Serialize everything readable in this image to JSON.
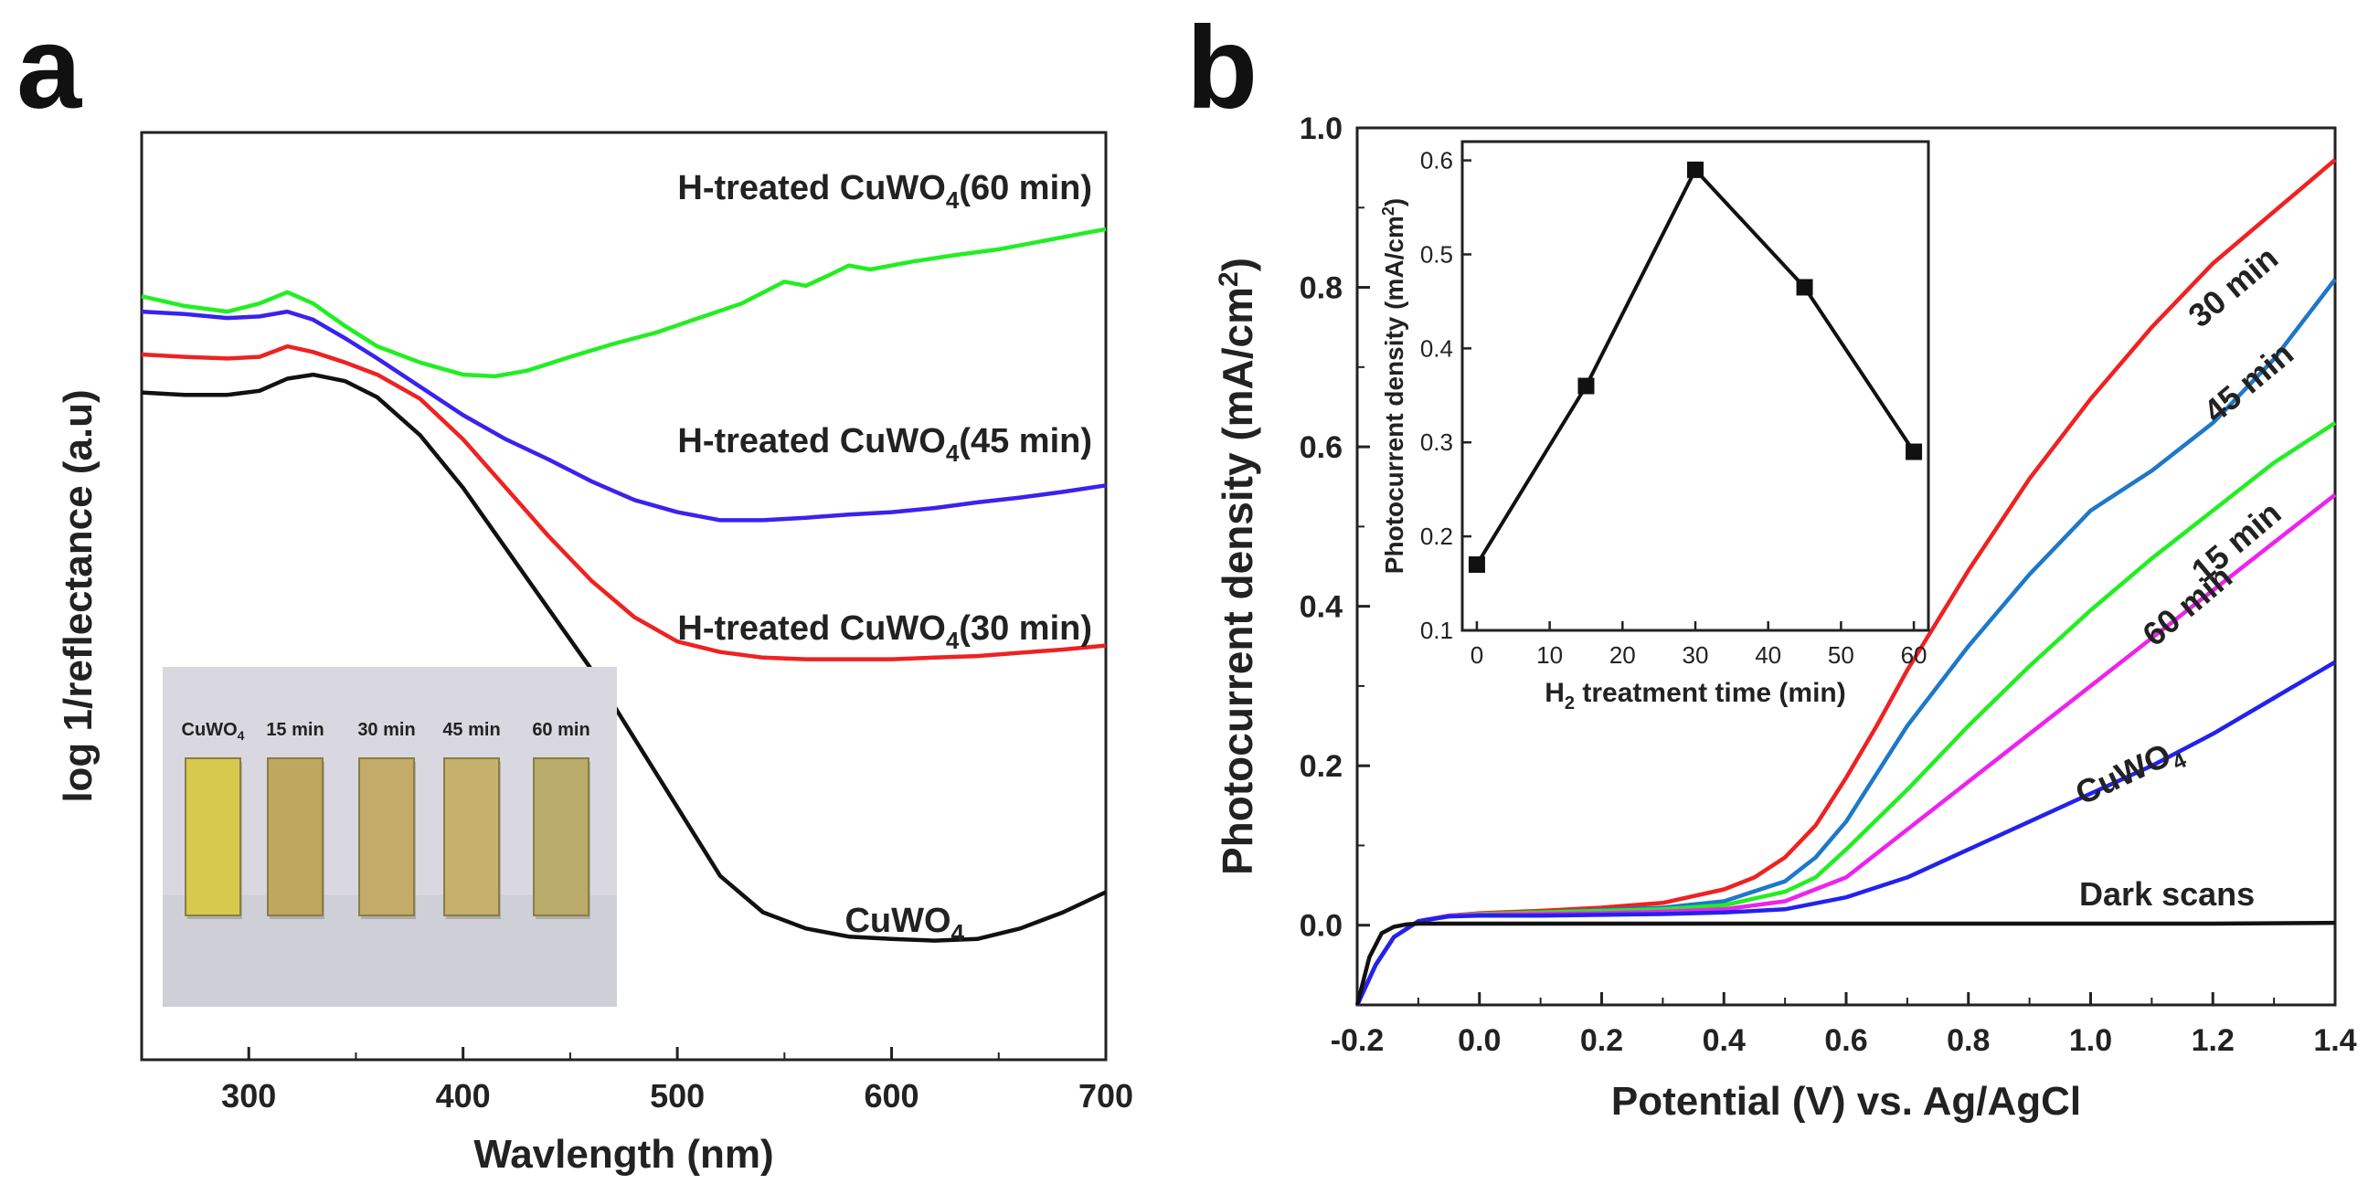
{
  "chart_data": [
    {
      "panel_label": "a",
      "type": "line",
      "xlabel": "Wavlength (nm)",
      "ylabel": "log 1/reflectance (a.u)",
      "xlim": [
        250,
        700
      ],
      "ylim": [
        0,
        1
      ],
      "xticks": [
        300,
        400,
        500,
        600,
        700
      ],
      "series": [
        {
          "name": "H-treated CuWO4(60 min)",
          "label_main": "H-treated CuWO",
          "label_sub": "4",
          "label_tail": "(60 min)",
          "color": "#22ee22",
          "x": [
            250,
            270,
            290,
            305,
            318,
            330,
            345,
            360,
            380,
            400,
            415,
            430,
            450,
            470,
            490,
            510,
            530,
            550,
            560,
            570,
            580,
            590,
            610,
            630,
            650,
            670,
            690,
            700
          ],
          "y": [
            0.837,
            0.825,
            0.818,
            0.828,
            0.842,
            0.828,
            0.8,
            0.775,
            0.755,
            0.74,
            0.738,
            0.745,
            0.762,
            0.778,
            0.792,
            0.81,
            0.828,
            0.855,
            0.85,
            0.862,
            0.875,
            0.87,
            0.88,
            0.888,
            0.895,
            0.905,
            0.915,
            0.92
          ]
        },
        {
          "name": "H-treated CuWO4(45 min)",
          "label_main": "H-treated CuWO",
          "label_sub": "4",
          "label_tail": "(45 min)",
          "color": "#3a22ee",
          "x": [
            250,
            270,
            290,
            305,
            318,
            330,
            345,
            360,
            380,
            400,
            420,
            440,
            460,
            480,
            500,
            520,
            540,
            560,
            580,
            600,
            620,
            640,
            660,
            680,
            700
          ],
          "y": [
            0.818,
            0.815,
            0.81,
            0.812,
            0.818,
            0.808,
            0.785,
            0.76,
            0.725,
            0.69,
            0.66,
            0.635,
            0.608,
            0.585,
            0.57,
            0.56,
            0.56,
            0.563,
            0.567,
            0.57,
            0.575,
            0.582,
            0.588,
            0.595,
            0.603
          ]
        },
        {
          "name": "H-treated CuWO4(30 min)",
          "label_main": "H-treated CuWO",
          "label_sub": "4",
          "label_tail": "(30 min)",
          "color": "#ee2222",
          "x": [
            250,
            270,
            290,
            305,
            318,
            330,
            345,
            360,
            380,
            400,
            420,
            440,
            460,
            480,
            500,
            520,
            540,
            560,
            580,
            600,
            620,
            640,
            660,
            680,
            700
          ],
          "y": [
            0.765,
            0.762,
            0.76,
            0.762,
            0.775,
            0.768,
            0.755,
            0.74,
            0.71,
            0.66,
            0.6,
            0.54,
            0.485,
            0.44,
            0.41,
            0.397,
            0.39,
            0.388,
            0.388,
            0.388,
            0.39,
            0.392,
            0.396,
            0.4,
            0.405
          ]
        },
        {
          "name": "CuWO4",
          "label_main": "CuWO",
          "label_sub": "4",
          "label_tail": "",
          "color": "#111111",
          "x": [
            250,
            270,
            290,
            305,
            318,
            330,
            345,
            360,
            380,
            400,
            420,
            440,
            460,
            480,
            500,
            520,
            540,
            560,
            580,
            600,
            620,
            640,
            660,
            680,
            700
          ],
          "y": [
            0.718,
            0.715,
            0.715,
            0.72,
            0.735,
            0.74,
            0.732,
            0.712,
            0.665,
            0.6,
            0.525,
            0.45,
            0.375,
            0.29,
            0.205,
            0.12,
            0.075,
            0.055,
            0.045,
            0.042,
            0.04,
            0.042,
            0.055,
            0.075,
            0.1
          ]
        }
      ],
      "inset_photo": {
        "labels": [
          {
            "main": "CuWO",
            "sub": "4"
          },
          {
            "main": "15 min",
            "sub": ""
          },
          {
            "main": "30 min",
            "sub": ""
          },
          {
            "main": "45 min",
            "sub": ""
          },
          {
            "main": "60 min",
            "sub": ""
          }
        ],
        "fill_colors": [
          "#d6c94d",
          "#bfa75e",
          "#c4ab6a",
          "#c5b06c",
          "#b9ab69"
        ]
      }
    },
    {
      "panel_label": "b",
      "type": "line",
      "xlabel": "Potential (V) vs. Ag/AgCl",
      "ylabel": "Photocurrent density (mA/cm",
      "ylabel_sup": "2",
      "ylabel_tail": ")",
      "xlim": [
        -0.2,
        1.4
      ],
      "ylim": [
        -0.1,
        1.0
      ],
      "xticks": [
        -0.2,
        0.0,
        0.2,
        0.4,
        0.6,
        0.8,
        1.0,
        1.2,
        1.4
      ],
      "yticks": [
        0.0,
        0.2,
        0.4,
        0.6,
        0.8,
        1.0
      ],
      "series": [
        {
          "name": "30 min",
          "label_main": "30 min",
          "label_sub": "",
          "color": "#ee2222",
          "x": [
            -0.2,
            -0.17,
            -0.14,
            -0.1,
            -0.05,
            0.0,
            0.1,
            0.2,
            0.3,
            0.4,
            0.45,
            0.5,
            0.55,
            0.6,
            0.65,
            0.7,
            0.8,
            0.9,
            1.0,
            1.1,
            1.2,
            1.3,
            1.4
          ],
          "y": [
            -0.1,
            -0.05,
            -0.015,
            0.005,
            0.012,
            0.015,
            0.018,
            0.022,
            0.028,
            0.045,
            0.06,
            0.085,
            0.125,
            0.185,
            0.25,
            0.32,
            0.445,
            0.56,
            0.66,
            0.75,
            0.83,
            0.895,
            0.96
          ]
        },
        {
          "name": "45 min",
          "label_main": "45 min",
          "label_sub": "",
          "color": "#1e78c8",
          "x": [
            -0.2,
            -0.17,
            -0.14,
            -0.1,
            -0.05,
            0.0,
            0.1,
            0.2,
            0.3,
            0.4,
            0.5,
            0.55,
            0.6,
            0.65,
            0.7,
            0.8,
            0.9,
            1.0,
            1.1,
            1.2,
            1.3,
            1.4
          ],
          "y": [
            -0.1,
            -0.05,
            -0.015,
            0.005,
            0.012,
            0.014,
            0.016,
            0.019,
            0.022,
            0.03,
            0.055,
            0.085,
            0.13,
            0.19,
            0.25,
            0.35,
            0.44,
            0.52,
            0.57,
            0.63,
            0.71,
            0.81
          ]
        },
        {
          "name": "15 min",
          "label_main": "15 min",
          "label_sub": "",
          "color": "#22ee22",
          "x": [
            -0.2,
            -0.17,
            -0.14,
            -0.1,
            -0.05,
            0.0,
            0.1,
            0.2,
            0.3,
            0.4,
            0.5,
            0.55,
            0.6,
            0.7,
            0.8,
            0.9,
            1.0,
            1.1,
            1.2,
            1.3,
            1.4
          ],
          "y": [
            -0.1,
            -0.05,
            -0.015,
            0.005,
            0.012,
            0.014,
            0.016,
            0.018,
            0.02,
            0.025,
            0.042,
            0.06,
            0.095,
            0.17,
            0.25,
            0.325,
            0.395,
            0.46,
            0.52,
            0.58,
            0.63
          ]
        },
        {
          "name": "60 min",
          "label_main": "60 min",
          "label_sub": "",
          "color": "#ee22ee",
          "x": [
            -0.2,
            -0.17,
            -0.14,
            -0.1,
            -0.05,
            0.0,
            0.1,
            0.2,
            0.3,
            0.4,
            0.5,
            0.6,
            0.7,
            0.8,
            0.9,
            1.0,
            1.1,
            1.2,
            1.3,
            1.4
          ],
          "y": [
            -0.1,
            -0.05,
            -0.015,
            0.005,
            0.012,
            0.013,
            0.014,
            0.015,
            0.017,
            0.02,
            0.03,
            0.06,
            0.12,
            0.18,
            0.24,
            0.3,
            0.36,
            0.42,
            0.48,
            0.54
          ]
        },
        {
          "name": "CuWO4",
          "label_main": "CuWO",
          "label_sub": "4",
          "color": "#2222ee",
          "x": [
            -0.2,
            -0.17,
            -0.14,
            -0.1,
            -0.05,
            0.0,
            0.1,
            0.2,
            0.3,
            0.4,
            0.5,
            0.6,
            0.7,
            0.8,
            0.9,
            1.0,
            1.1,
            1.2,
            1.3,
            1.4
          ],
          "y": [
            -0.1,
            -0.05,
            -0.015,
            0.005,
            0.011,
            0.012,
            0.012,
            0.013,
            0.014,
            0.016,
            0.02,
            0.035,
            0.06,
            0.095,
            0.13,
            0.165,
            0.2,
            0.24,
            0.285,
            0.33
          ]
        },
        {
          "name": "Dark scans",
          "label_main": "Dark scans",
          "label_sub": "",
          "color": "#111111",
          "x": [
            -0.2,
            -0.18,
            -0.16,
            -0.14,
            -0.12,
            -0.1,
            0.0,
            0.2,
            0.4,
            0.6,
            0.8,
            1.0,
            1.2,
            1.4
          ],
          "y": [
            -0.1,
            -0.04,
            -0.01,
            -0.002,
            0.001,
            0.002,
            0.002,
            0.002,
            0.002,
            0.002,
            0.002,
            0.002,
            0.002,
            0.003
          ]
        }
      ],
      "inset": {
        "type": "line",
        "xlabel_main": "H",
        "xlabel_sub": "2",
        "xlabel_tail": " treatment time (min)",
        "ylabel": "Photocurrent density (mA/cm",
        "ylabel_sup": "2",
        "ylabel_tail": ")",
        "xlim": [
          -2,
          62
        ],
        "ylim": [
          0.1,
          0.62
        ],
        "xticks": [
          0,
          10,
          20,
          30,
          40,
          50,
          60
        ],
        "yticks": [
          0.1,
          0.2,
          0.3,
          0.4,
          0.5,
          0.6
        ],
        "x": [
          0,
          15,
          30,
          45,
          60
        ],
        "y": [
          0.17,
          0.36,
          0.59,
          0.465,
          0.29
        ]
      }
    }
  ]
}
